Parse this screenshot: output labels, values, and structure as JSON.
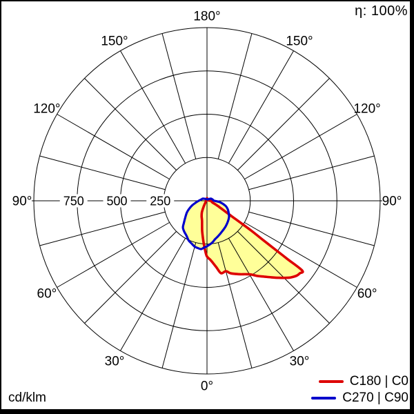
{
  "labels": {
    "efficiency": "η: 100%",
    "unit": "cd/klm"
  },
  "legend": {
    "items": [
      {
        "label": "C180 | C0",
        "color": "#dd0000"
      },
      {
        "label": "C270 | C90",
        "color": "#0000cc"
      }
    ]
  },
  "chart_data": {
    "type": "polar_photometric",
    "unit": "cd/klm",
    "efficiency_text": "η: 100%",
    "grid_color": "#000000",
    "fill_color": "#ffff99",
    "radial_axis": {
      "max": 1000,
      "circle_values": [
        250,
        500,
        750,
        1000
      ],
      "labeled_values": [
        250,
        500,
        750
      ]
    },
    "angular_axis": {
      "label_degs": [
        0,
        30,
        60,
        90,
        120,
        150,
        180
      ],
      "label_suffix": "°",
      "radial_line_step_deg": 15,
      "radial_lines_start_value": 250
    },
    "series": [
      {
        "name": "C180 | C0",
        "color": "#dd0000",
        "stroke_width": 3.6,
        "points": [
          [
            180,
            15
          ],
          [
            150,
            9
          ],
          [
            120,
            8
          ],
          [
            100,
            10
          ],
          [
            90,
            22
          ],
          [
            80,
            27
          ],
          [
            73,
            33
          ],
          [
            68,
            48
          ],
          [
            65,
            66
          ],
          [
            62,
            90
          ],
          [
            60,
            115
          ],
          [
            58,
            165
          ],
          [
            57,
            220
          ],
          [
            56,
            310
          ],
          [
            55,
            400
          ],
          [
            54.5,
            480
          ],
          [
            54.1,
            570
          ],
          [
            53.8,
            681
          ],
          [
            52,
            680
          ],
          [
            50,
            674
          ],
          [
            47.5,
            655
          ],
          [
            46,
            640
          ],
          [
            43,
            608
          ],
          [
            40,
            577
          ],
          [
            37,
            548
          ],
          [
            34,
            524
          ],
          [
            31,
            497
          ],
          [
            28,
            480
          ],
          [
            25,
            468
          ],
          [
            22,
            456
          ],
          [
            18,
            440
          ],
          [
            15,
            421
          ],
          [
            11,
            426
          ],
          [
            8,
            388
          ],
          [
            5,
            356
          ],
          [
            3,
            340
          ],
          [
            0,
            322
          ],
          [
            -2,
            290
          ],
          [
            -5,
            236
          ],
          [
            -9,
            178
          ],
          [
            -14,
            119
          ],
          [
            -19,
            95
          ],
          [
            -24,
            72
          ],
          [
            -29,
            42
          ],
          [
            -34,
            25
          ],
          [
            -45,
            12
          ],
          [
            -60,
            8
          ],
          [
            -90,
            6
          ],
          [
            -120,
            6
          ],
          [
            -150,
            8
          ]
        ]
      },
      {
        "name": "C270 | C90",
        "color": "#0000cc",
        "stroke_width": 3.2,
        "points": [
          [
            180,
            9
          ],
          [
            150,
            9
          ],
          [
            120,
            25
          ],
          [
            105,
            32
          ],
          [
            97,
            36
          ],
          [
            90,
            42
          ],
          [
            84,
            75
          ],
          [
            75,
            110
          ],
          [
            68,
            129
          ],
          [
            60,
            145
          ],
          [
            53,
            159
          ],
          [
            45,
            170
          ],
          [
            36,
            183
          ],
          [
            27,
            196
          ],
          [
            18,
            213
          ],
          [
            12,
            226
          ],
          [
            8,
            240
          ],
          [
            4,
            252
          ],
          [
            0,
            262
          ],
          [
            -4,
            272
          ],
          [
            -7,
            281
          ],
          [
            -11,
            278
          ],
          [
            -15,
            274
          ],
          [
            -20,
            262
          ],
          [
            -25,
            252
          ],
          [
            -30,
            235
          ],
          [
            -36,
            222
          ],
          [
            -42,
            208
          ],
          [
            -46,
            186
          ],
          [
            -52,
            160
          ],
          [
            -60,
            134
          ],
          [
            -66,
            112
          ],
          [
            -72,
            92
          ],
          [
            -80,
            68
          ],
          [
            -90,
            48
          ],
          [
            -105,
            33
          ],
          [
            -117,
            27
          ],
          [
            -135,
            16
          ],
          [
            -160,
            10
          ]
        ]
      }
    ]
  }
}
